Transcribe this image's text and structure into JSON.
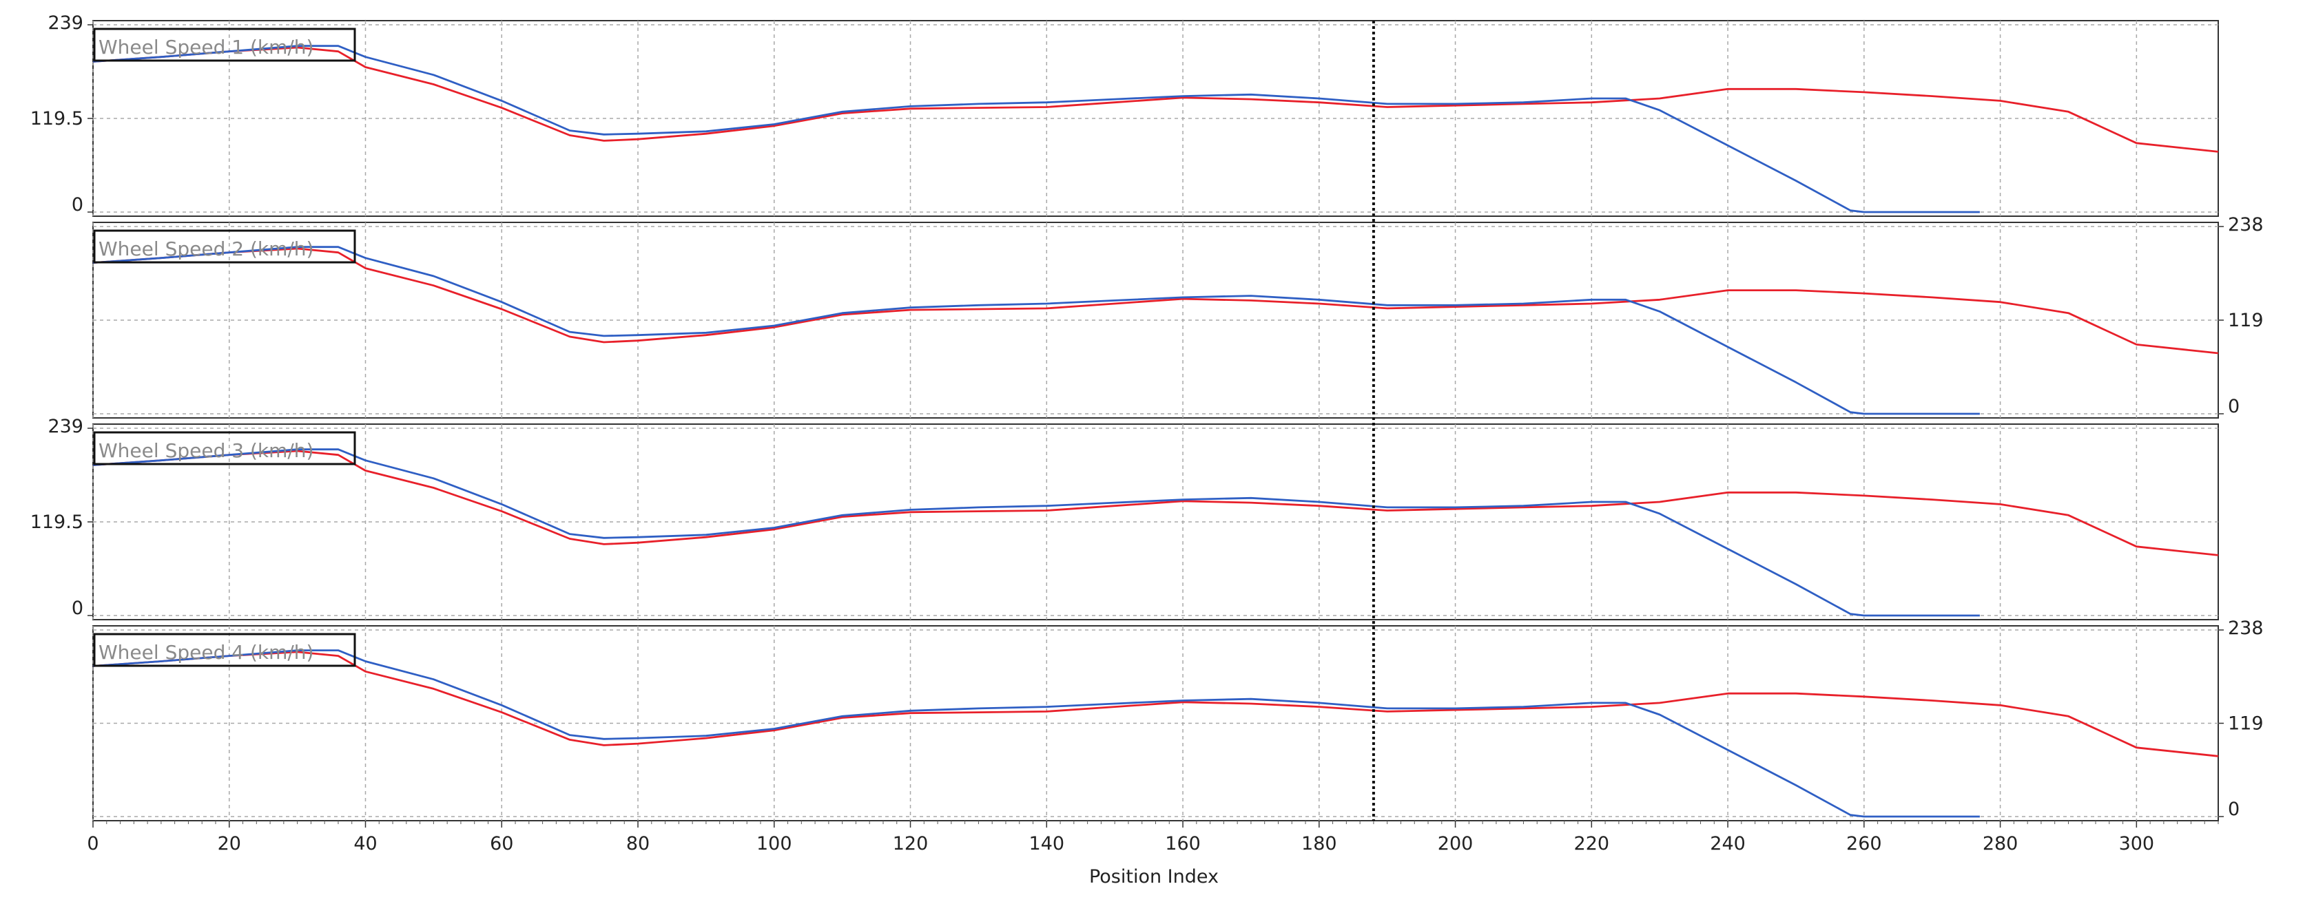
{
  "chart_data": {
    "type": "line",
    "xlabel": "Position Index",
    "xlim": [
      0,
      312
    ],
    "x_ticks": [
      0,
      20,
      40,
      60,
      80,
      100,
      120,
      140,
      160,
      180,
      200,
      220,
      240,
      260,
      280,
      300
    ],
    "cursor_x": 188,
    "series_colors": {
      "red": "#e8202a",
      "blue": "#2f5fc4"
    },
    "panels": [
      {
        "title": "Wheel Speed 1 (km/h)",
        "ylim": [
          0,
          239
        ],
        "y_ticks": [
          0,
          119.5,
          239
        ],
        "y_tick_labels": [
          "0",
          "119.5",
          "239"
        ],
        "axis_side": "left",
        "red": {
          "x": [
            0,
            10,
            20,
            30,
            36,
            40,
            50,
            60,
            70,
            75,
            80,
            90,
            100,
            110,
            120,
            130,
            140,
            150,
            160,
            170,
            180,
            190,
            200,
            210,
            220,
            230,
            240,
            250,
            260,
            270,
            280,
            290,
            300,
            312
          ],
          "y": [
            192,
            198,
            205,
            210,
            205,
            185,
            163,
            133,
            98,
            91,
            93,
            100,
            110,
            126,
            132,
            133,
            134,
            140,
            146,
            144,
            140,
            134,
            136,
            138,
            140,
            145,
            157,
            157,
            153,
            148,
            142,
            128,
            88,
            77
          ]
        },
        "blue": {
          "x": [
            0,
            10,
            20,
            30,
            36,
            40,
            50,
            60,
            70,
            75,
            80,
            90,
            100,
            110,
            120,
            130,
            140,
            150,
            160,
            170,
            180,
            190,
            200,
            210,
            220,
            225,
            230,
            240,
            250,
            258,
            260,
            270,
            277
          ],
          "y": [
            192,
            198,
            205,
            212,
            212,
            198,
            175,
            142,
            104,
            99,
            100,
            103,
            112,
            128,
            135,
            138,
            140,
            144,
            148,
            150,
            145,
            138,
            138,
            140,
            145,
            145,
            130,
            85,
            40,
            2,
            0,
            0,
            0
          ]
        }
      },
      {
        "title": "Wheel Speed 2 (km/h)",
        "ylim": [
          0,
          238
        ],
        "y_ticks": [
          0,
          119,
          238
        ],
        "y_tick_labels": [
          "0",
          "119",
          "238"
        ],
        "axis_side": "right",
        "red": {
          "x": [
            0,
            10,
            20,
            30,
            36,
            40,
            50,
            60,
            70,
            75,
            80,
            90,
            100,
            110,
            120,
            130,
            140,
            150,
            160,
            170,
            180,
            190,
            200,
            210,
            220,
            230,
            240,
            250,
            260,
            270,
            280,
            290,
            300,
            312
          ],
          "y": [
            192,
            198,
            205,
            210,
            205,
            185,
            163,
            133,
            98,
            91,
            93,
            100,
            110,
            126,
            132,
            133,
            134,
            140,
            146,
            144,
            140,
            134,
            136,
            138,
            140,
            145,
            157,
            157,
            153,
            148,
            142,
            128,
            88,
            77
          ]
        },
        "blue": {
          "x": [
            0,
            10,
            20,
            30,
            36,
            40,
            50,
            60,
            70,
            75,
            80,
            90,
            100,
            110,
            120,
            130,
            140,
            150,
            160,
            170,
            180,
            190,
            200,
            210,
            220,
            225,
            230,
            240,
            250,
            258,
            260,
            270,
            277
          ],
          "y": [
            192,
            198,
            205,
            212,
            212,
            198,
            175,
            142,
            104,
            99,
            100,
            103,
            112,
            128,
            135,
            138,
            140,
            144,
            148,
            150,
            145,
            138,
            138,
            140,
            145,
            145,
            130,
            85,
            40,
            2,
            0,
            0,
            0
          ]
        }
      },
      {
        "title": "Wheel Speed 3 (km/h)",
        "ylim": [
          0,
          239
        ],
        "y_ticks": [
          0,
          119.5,
          239
        ],
        "y_tick_labels": [
          "0",
          "119.5",
          "239"
        ],
        "axis_side": "left",
        "red": {
          "x": [
            0,
            10,
            20,
            30,
            36,
            40,
            50,
            60,
            70,
            75,
            80,
            90,
            100,
            110,
            120,
            130,
            140,
            150,
            160,
            170,
            180,
            190,
            200,
            210,
            220,
            230,
            240,
            250,
            260,
            270,
            280,
            290,
            300,
            312
          ],
          "y": [
            192,
            198,
            205,
            210,
            205,
            185,
            163,
            133,
            98,
            91,
            93,
            100,
            110,
            126,
            132,
            133,
            134,
            140,
            146,
            144,
            140,
            134,
            136,
            138,
            140,
            145,
            157,
            157,
            153,
            148,
            142,
            128,
            88,
            77
          ]
        },
        "blue": {
          "x": [
            0,
            10,
            20,
            30,
            36,
            40,
            50,
            60,
            70,
            75,
            80,
            90,
            100,
            110,
            120,
            130,
            140,
            150,
            160,
            170,
            180,
            190,
            200,
            210,
            220,
            225,
            230,
            240,
            250,
            258,
            260,
            270,
            277
          ],
          "y": [
            192,
            198,
            205,
            212,
            212,
            198,
            175,
            142,
            104,
            99,
            100,
            103,
            112,
            128,
            135,
            138,
            140,
            144,
            148,
            150,
            145,
            138,
            138,
            140,
            145,
            145,
            130,
            85,
            40,
            2,
            0,
            0,
            0
          ]
        }
      },
      {
        "title": "Wheel Speed 4 (km/h)",
        "ylim": [
          0,
          238
        ],
        "y_ticks": [
          0,
          119,
          238
        ],
        "y_tick_labels": [
          "0",
          "119",
          "238"
        ],
        "axis_side": "right",
        "red": {
          "x": [
            0,
            10,
            20,
            30,
            36,
            40,
            50,
            60,
            70,
            75,
            80,
            90,
            100,
            110,
            120,
            130,
            140,
            150,
            160,
            170,
            180,
            190,
            200,
            210,
            220,
            230,
            240,
            250,
            260,
            270,
            280,
            290,
            300,
            312
          ],
          "y": [
            192,
            198,
            205,
            210,
            205,
            185,
            163,
            133,
            98,
            91,
            93,
            100,
            110,
            126,
            132,
            133,
            134,
            140,
            146,
            144,
            140,
            134,
            136,
            138,
            140,
            145,
            157,
            157,
            153,
            148,
            142,
            128,
            88,
            77
          ]
        },
        "blue": {
          "x": [
            0,
            10,
            20,
            30,
            36,
            40,
            50,
            60,
            70,
            75,
            80,
            90,
            100,
            110,
            120,
            130,
            140,
            150,
            160,
            170,
            180,
            190,
            200,
            210,
            220,
            225,
            230,
            240,
            250,
            258,
            260,
            270,
            277
          ],
          "y": [
            192,
            198,
            205,
            212,
            212,
            198,
            175,
            142,
            104,
            99,
            100,
            103,
            112,
            128,
            135,
            138,
            140,
            144,
            148,
            150,
            145,
            138,
            138,
            140,
            145,
            145,
            130,
            85,
            40,
            2,
            0,
            0,
            0
          ]
        }
      }
    ]
  }
}
